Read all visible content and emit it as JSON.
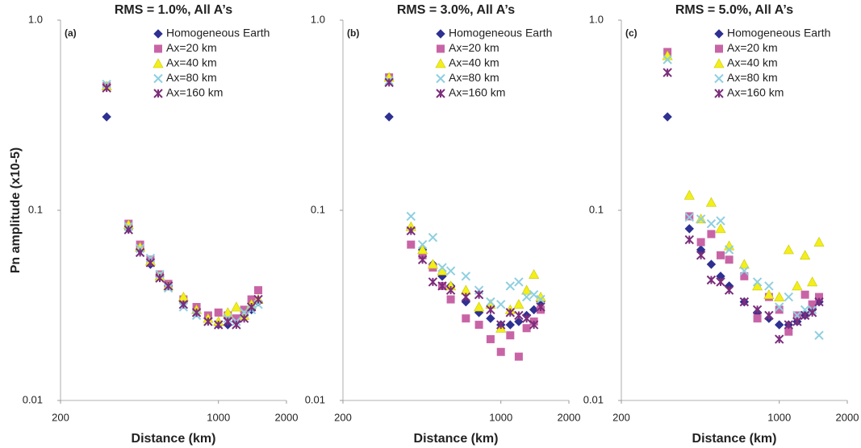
{
  "chart_data": [
    {
      "type": "scatter",
      "title": "RMS = 1.0%, All A’s",
      "panel_label": "(a)",
      "x_label": "Distance (km)",
      "y_label": "Pn amplitude (x10-5)",
      "log_x": true,
      "log_y": true,
      "xlim": [
        200,
        2000
      ],
      "ylim": [
        0.01,
        1
      ],
      "xticks": [
        200,
        1000,
        2000
      ],
      "yticks": [
        {
          "value": 1,
          "label": "1.0"
        },
        0.1,
        0.01
      ],
      "x": [
        320,
        400,
        450,
        500,
        550,
        600,
        700,
        800,
        900,
        1000,
        1100,
        1200,
        1300,
        1400,
        1500
      ],
      "series": [
        {
          "name": "Homogeneous Earth",
          "color": "#2e3192",
          "marker": "diamond",
          "values": [
            0.31,
            0.08,
            0.062,
            0.052,
            0.045,
            0.04,
            0.033,
            0.029,
            0.027,
            0.025,
            0.025,
            0.026,
            0.028,
            0.03,
            0.033
          ]
        },
        {
          "name": "Ax=20 km",
          "color": "#c864a6",
          "marker": "square",
          "values": [
            0.45,
            0.085,
            0.066,
            0.055,
            0.046,
            0.041,
            0.034,
            0.031,
            0.028,
            0.029,
            0.028,
            0.027,
            0.03,
            0.034,
            0.038
          ]
        },
        {
          "name": "Ax=40 km",
          "color": "#f2ef1a",
          "marker": "triangle",
          "values": [
            0.45,
            0.084,
            0.064,
            0.054,
            0.045,
            0.04,
            0.035,
            0.03,
            0.027,
            0.026,
            0.029,
            0.031,
            0.028,
            0.032,
            0.034
          ]
        },
        {
          "name": "Ax=80 km",
          "color": "#8ecfe0",
          "marker": "cross",
          "values": [
            0.46,
            0.082,
            0.063,
            0.056,
            0.046,
            0.039,
            0.031,
            0.028,
            0.026,
            0.025,
            0.027,
            0.026,
            0.029,
            0.03,
            0.032
          ]
        },
        {
          "name": "Ax=160 km",
          "color": "#7b2d7b",
          "marker": "star",
          "values": [
            0.44,
            0.079,
            0.06,
            0.053,
            0.044,
            0.04,
            0.032,
            0.029,
            0.026,
            0.025,
            0.026,
            0.025,
            0.027,
            0.031,
            0.034
          ]
        }
      ]
    },
    {
      "type": "scatter",
      "title": "RMS = 3.0%, All A’s",
      "panel_label": "(b)",
      "x_label": "Distance (km)",
      "log_x": true,
      "log_y": true,
      "xlim": [
        200,
        2000
      ],
      "ylim": [
        0.01,
        1
      ],
      "xticks": [
        200,
        1000,
        2000
      ],
      "yticks": [
        {
          "value": 1,
          "label": "1.0"
        },
        0.1,
        0.01
      ],
      "x": [
        320,
        400,
        450,
        500,
        550,
        600,
        700,
        800,
        900,
        1000,
        1100,
        1200,
        1300,
        1400,
        1500
      ],
      "series": [
        {
          "name": "Homogeneous Earth",
          "color": "#2e3192",
          "marker": "diamond",
          "values": [
            0.31,
            0.08,
            0.062,
            0.052,
            0.045,
            0.04,
            0.033,
            0.029,
            0.027,
            0.025,
            0.025,
            0.026,
            0.028,
            0.03,
            0.033
          ]
        },
        {
          "name": "Ax=20 km",
          "color": "#c864a6",
          "marker": "square",
          "values": [
            0.5,
            0.066,
            0.058,
            0.05,
            0.04,
            0.034,
            0.027,
            0.025,
            0.021,
            0.018,
            0.022,
            0.017,
            0.024,
            0.026,
            0.03
          ]
        },
        {
          "name": "Ax=40 km",
          "color": "#f2ef1a",
          "marker": "triangle",
          "values": [
            0.5,
            0.082,
            0.062,
            0.052,
            0.048,
            0.04,
            0.038,
            0.031,
            0.032,
            0.024,
            0.03,
            0.032,
            0.038,
            0.046,
            0.035
          ]
        },
        {
          "name": "Ax=80 km",
          "color": "#8ecfe0",
          "marker": "cross",
          "values": [
            0.48,
            0.093,
            0.066,
            0.072,
            0.05,
            0.048,
            0.045,
            0.038,
            0.033,
            0.032,
            0.04,
            0.042,
            0.035,
            0.036,
            0.034
          ]
        },
        {
          "name": "Ax=160 km",
          "color": "#7b2d7b",
          "marker": "star",
          "values": [
            0.47,
            0.078,
            0.055,
            0.042,
            0.04,
            0.038,
            0.035,
            0.036,
            0.03,
            0.025,
            0.029,
            0.028,
            0.027,
            0.025,
            0.031
          ]
        }
      ]
    },
    {
      "type": "scatter",
      "title": "RMS = 5.0%, All A’s",
      "panel_label": "(c)",
      "x_label": "Distance (km)",
      "log_x": true,
      "log_y": true,
      "xlim": [
        200,
        2000
      ],
      "ylim": [
        0.01,
        1
      ],
      "xticks": [
        200,
        1000,
        2000
      ],
      "yticks": [
        {
          "value": 1,
          "label": "1.0"
        },
        0.1,
        0.01
      ],
      "x": [
        320,
        400,
        450,
        500,
        550,
        600,
        700,
        800,
        900,
        1000,
        1100,
        1200,
        1300,
        1400,
        1500
      ],
      "series": [
        {
          "name": "Homogeneous Earth",
          "color": "#2e3192",
          "marker": "diamond",
          "values": [
            0.31,
            0.08,
            0.062,
            0.052,
            0.045,
            0.04,
            0.033,
            0.029,
            0.027,
            0.025,
            0.025,
            0.026,
            0.028,
            0.03,
            0.033
          ]
        },
        {
          "name": "Ax=20 km",
          "color": "#c864a6",
          "marker": "square",
          "values": [
            0.68,
            0.093,
            0.068,
            0.075,
            0.058,
            0.055,
            0.045,
            0.027,
            0.035,
            0.03,
            0.023,
            0.028,
            0.036,
            0.032,
            0.035
          ]
        },
        {
          "name": "Ax=40 km",
          "color": "#f2ef1a",
          "marker": "triangle",
          "values": [
            0.65,
            0.12,
            0.09,
            0.11,
            0.08,
            0.065,
            0.052,
            0.04,
            0.036,
            0.035,
            0.062,
            0.04,
            0.058,
            0.042,
            0.068
          ]
        },
        {
          "name": "Ax=80 km",
          "color": "#8ecfe0",
          "marker": "cross",
          "values": [
            0.62,
            0.092,
            0.09,
            0.085,
            0.088,
            0.062,
            0.048,
            0.042,
            0.04,
            0.031,
            0.035,
            0.028,
            0.03,
            0.03,
            0.022
          ]
        },
        {
          "name": "Ax=160 km",
          "color": "#7b2d7b",
          "marker": "star",
          "values": [
            0.53,
            0.07,
            0.058,
            0.043,
            0.042,
            0.038,
            0.033,
            0.03,
            0.028,
            0.021,
            0.025,
            0.026,
            0.028,
            0.029,
            0.033
          ]
        }
      ]
    }
  ]
}
